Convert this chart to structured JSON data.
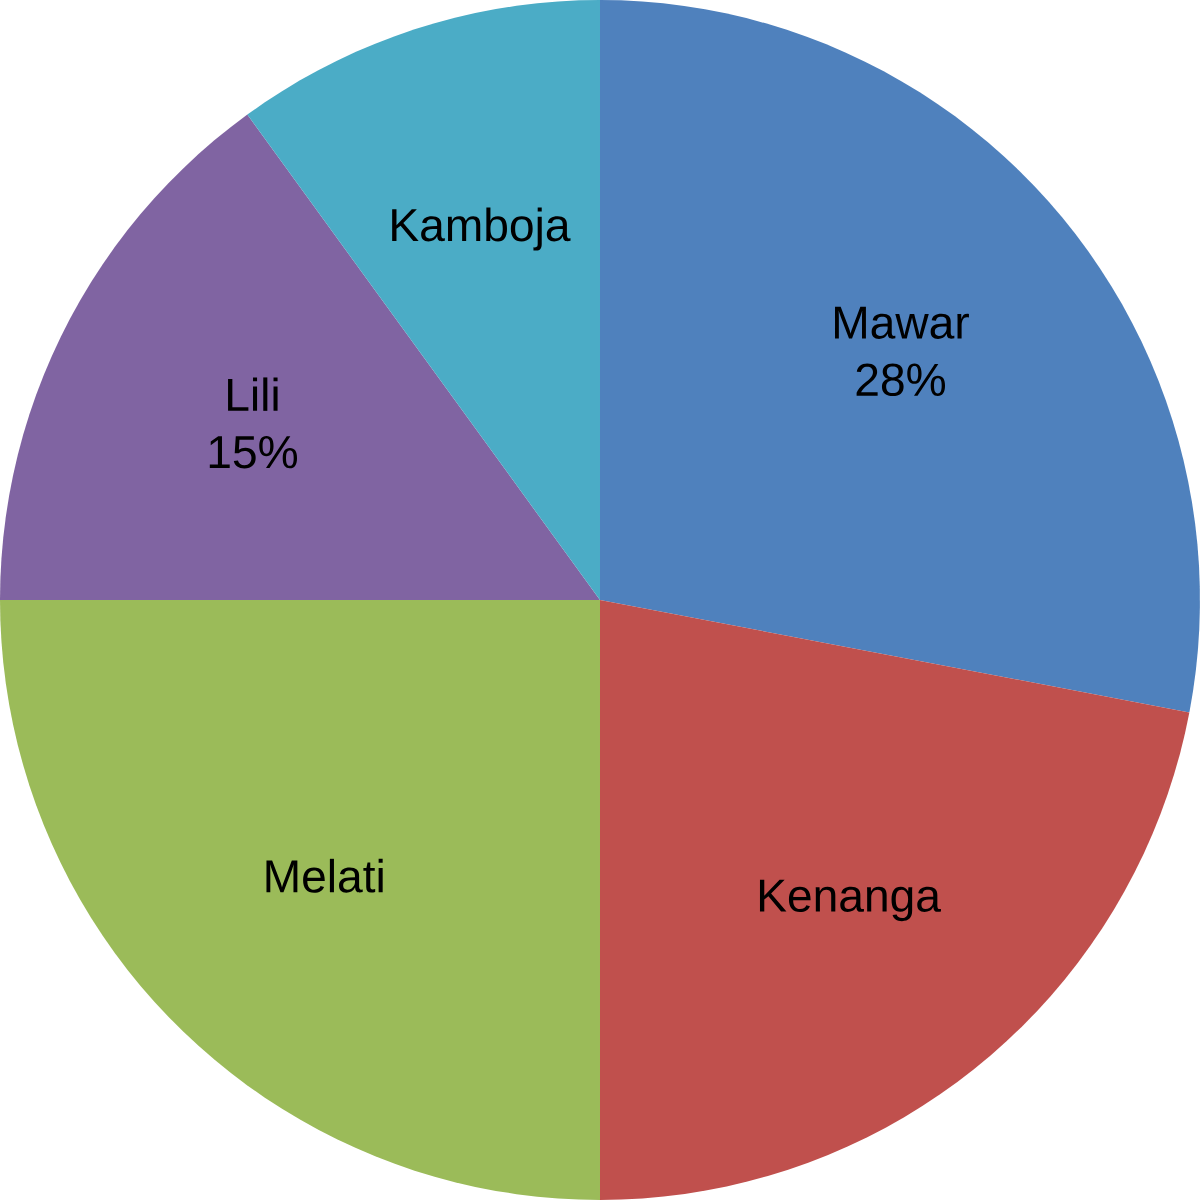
{
  "chart_data": {
    "type": "pie",
    "categories": [
      "Mawar",
      "Kenanga",
      "Melati",
      "Lili",
      "Kamboja"
    ],
    "values": [
      28,
      22,
      25,
      15,
      10
    ],
    "colors": [
      "#4f81bd",
      "#c0504d",
      "#9bbb59",
      "#8064a2",
      "#4bacc6"
    ],
    "value_labels": [
      "28%",
      null,
      null,
      "15%",
      null
    ]
  }
}
